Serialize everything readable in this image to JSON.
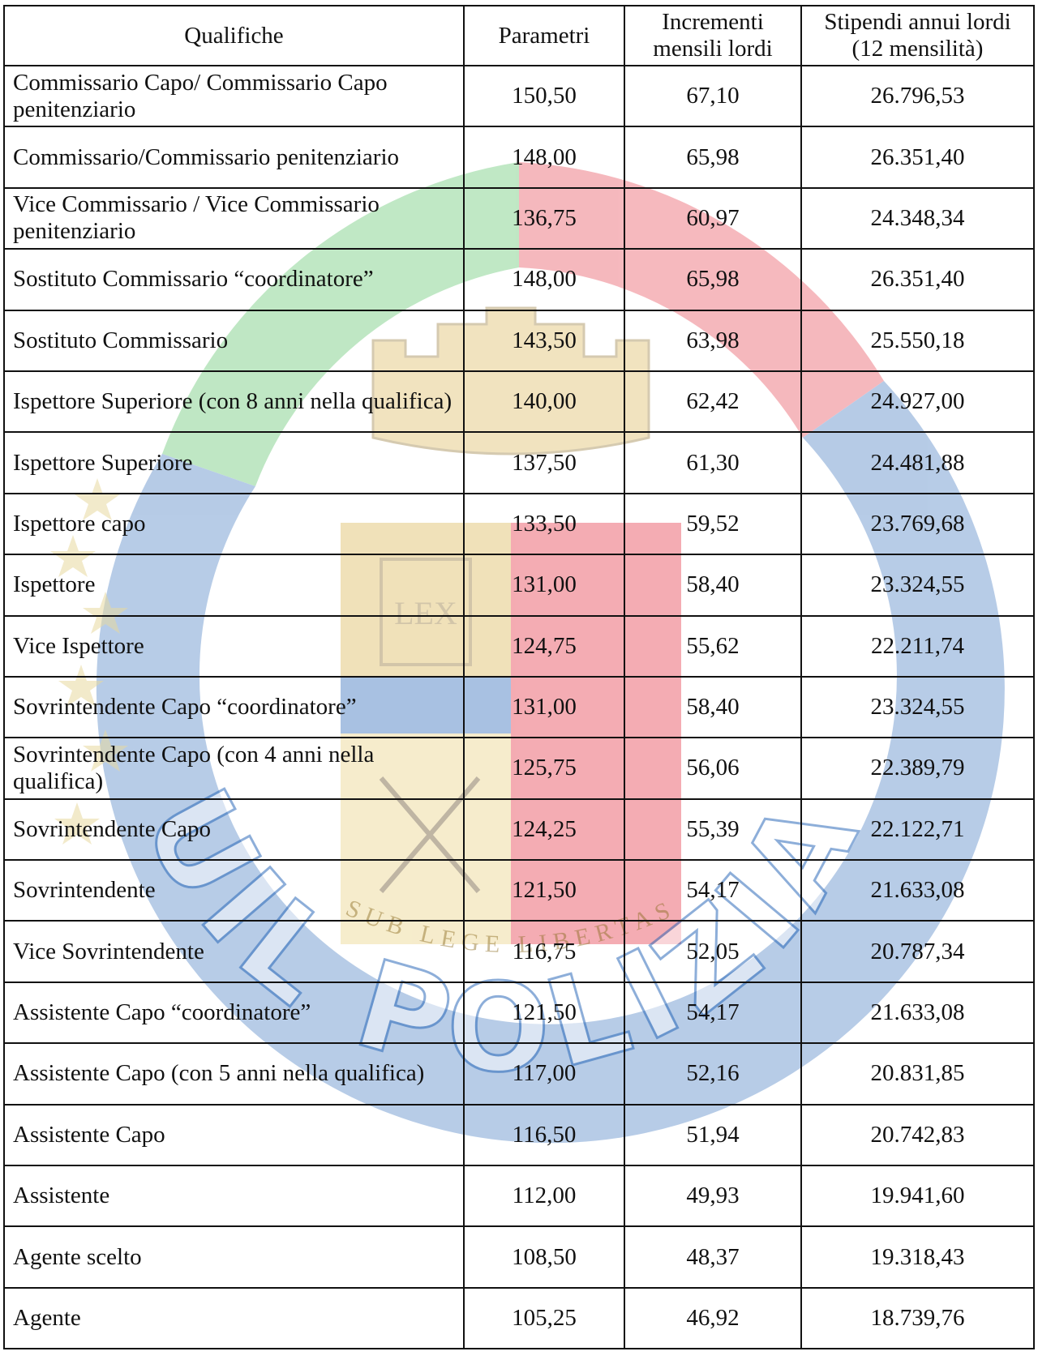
{
  "watermark": {
    "text": "UIL POLIZIA",
    "motto": "SUB LEGE LIBERTAS",
    "book_text": "LEX",
    "colors": {
      "green": "#3cb64a",
      "red": "#e32636",
      "blue": "#1e5fb4",
      "gold": "#d8b24a"
    }
  },
  "table": {
    "headers": {
      "qualifiche": "Qualifiche",
      "parametri": "Parametri",
      "incrementi_1": "Incrementi",
      "incrementi_2": "mensili lordi",
      "stipendi_1": "Stipendi annui lordi",
      "stipendi_2": "(12 mensilità)"
    },
    "rows": [
      {
        "qualifica": "Commissario Capo/ Commissario Capo penitenziario",
        "parametri": "150,50",
        "incrementi": "67,10",
        "stipendi": "26.796,53"
      },
      {
        "qualifica": "Commissario/Commissario penitenziario",
        "parametri": "148,00",
        "incrementi": "65,98",
        "stipendi": "26.351,40"
      },
      {
        "qualifica": "Vice Commissario / Vice  Commissario penitenziario",
        "parametri": "136,75",
        "incrementi": "60,97",
        "stipendi": "24.348,34"
      },
      {
        "qualifica": "Sostituto Commissario “coordinatore”",
        "parametri": "148,00",
        "incrementi": "65,98",
        "stipendi": "26.351,40"
      },
      {
        "qualifica": "Sostituto Commissario",
        "parametri": "143,50",
        "incrementi": "63,98",
        "stipendi": "25.550,18"
      },
      {
        "qualifica": "Ispettore Superiore (con 8 anni nella qualifica)",
        "parametri": "140,00",
        "incrementi": "62,42",
        "stipendi": "24.927,00"
      },
      {
        "qualifica": "Ispettore Superiore",
        "parametri": "137,50",
        "incrementi": "61,30",
        "stipendi": "24.481,88"
      },
      {
        "qualifica": "Ispettore capo",
        "parametri": "133,50",
        "incrementi": "59,52",
        "stipendi": "23.769,68"
      },
      {
        "qualifica": "Ispettore",
        "parametri": "131,00",
        "incrementi": "58,40",
        "stipendi": "23.324,55"
      },
      {
        "qualifica": "Vice Ispettore",
        "parametri": "124,75",
        "incrementi": "55,62",
        "stipendi": "22.211,74"
      },
      {
        "qualifica": "Sovrintendente Capo “coordinatore”",
        "parametri": "131,00",
        "incrementi": "58,40",
        "stipendi": "23.324,55"
      },
      {
        "qualifica": "Sovrintendente Capo (con 4 anni nella qualifica)",
        "parametri": "125,75",
        "incrementi": "56,06",
        "stipendi": "22.389,79"
      },
      {
        "qualifica": "Sovrintendente Capo",
        "parametri": "124,25",
        "incrementi": "55,39",
        "stipendi": "22.122,71"
      },
      {
        "qualifica": "Sovrintendente",
        "parametri": "121,50",
        "incrementi": "54,17",
        "stipendi": "21.633,08"
      },
      {
        "qualifica": "Vice Sovrintendente",
        "parametri": "116,75",
        "incrementi": "52,05",
        "stipendi": "20.787,34"
      },
      {
        "qualifica": "Assistente Capo “coordinatore”",
        "parametri": "121,50",
        "incrementi": "54,17",
        "stipendi": "21.633,08"
      },
      {
        "qualifica": "Assistente Capo (con 5 anni nella qualifica)",
        "parametri": "117,00",
        "incrementi": "52,16",
        "stipendi": "20.831,85"
      },
      {
        "qualifica": "Assistente Capo",
        "parametri": "116,50",
        "incrementi": "51,94",
        "stipendi": "20.742,83"
      },
      {
        "qualifica": "Assistente",
        "parametri": "112,00",
        "incrementi": "49,93",
        "stipendi": "19.941,60"
      },
      {
        "qualifica": "Agente scelto",
        "parametri": "108,50",
        "incrementi": "48,37",
        "stipendi": "19.318,43"
      },
      {
        "qualifica": "Agente",
        "parametri": "105,25",
        "incrementi": "46,92",
        "stipendi": "18.739,76"
      }
    ]
  }
}
